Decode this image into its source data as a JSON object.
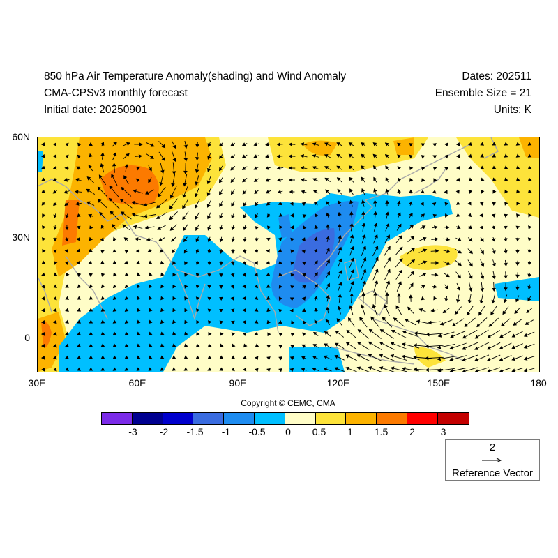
{
  "header": {
    "title": "850 hPa Air Temperature Anomaly(shading) and Wind Anomaly",
    "subtitle": "CMA-CPSv3 monthly forecast",
    "initial_date": "Initial date: 20250901",
    "dates": "Dates: 202511",
    "ensemble": "Ensemble Size = 21",
    "units": "Units: K"
  },
  "map": {
    "region": {
      "lon_min": 30,
      "lon_max": 180,
      "lat_min": -10,
      "lat_max": 60
    },
    "lat_ticks": [
      "60N",
      "30N",
      "0"
    ],
    "lon_ticks": [
      "30E",
      "60E",
      "90E",
      "120E",
      "150E",
      "180"
    ],
    "coastline_color": "#a9a9a9",
    "vector_color": "#000000"
  },
  "copyright": "Copyright © CEMC, CMA",
  "colorbar": {
    "colors": [
      "#7b2be8",
      "#000090",
      "#0000cd",
      "#3a6ce0",
      "#1e8cf0",
      "#00bfff",
      "#fffdc7",
      "#fde33a",
      "#fcb300",
      "#fc7a00",
      "#ff0000",
      "#c30000"
    ],
    "labels": [
      "-3",
      "-2",
      "-1.5",
      "-1",
      "-0.5",
      "0",
      "0.5",
      "1",
      "1.5",
      "2",
      "3"
    ]
  },
  "reference_vector": {
    "magnitude": "2",
    "label": "Reference Vector"
  }
}
